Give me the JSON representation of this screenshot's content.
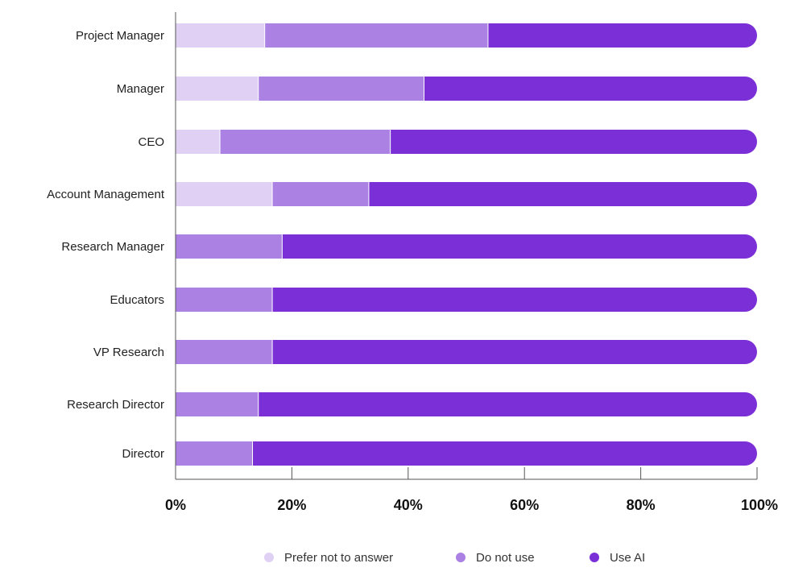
{
  "chart_data": {
    "type": "bar",
    "orientation": "horizontal",
    "stacked": true,
    "categories": [
      "Project Manager",
      "Manager",
      "CEO",
      "Account Management",
      "Research Manager",
      "Educators",
      "VP Research",
      "Research Director",
      "Director"
    ],
    "series": [
      {
        "name": "Prefer not to answer",
        "color": "#e0d1f4",
        "values": [
          15.4,
          14.3,
          7.7,
          16.7,
          0,
          0,
          0,
          0,
          0
        ]
      },
      {
        "name": "Do not use",
        "color": "#ab82e3",
        "values": [
          38.4,
          28.5,
          29.3,
          16.6,
          18.4,
          16.7,
          16.7,
          14.3,
          13.3
        ]
      },
      {
        "name": "Use AI",
        "color": "#7b2fd6",
        "values": [
          46.2,
          57.2,
          63.0,
          66.7,
          81.6,
          83.3,
          83.3,
          85.7,
          86.7
        ]
      }
    ],
    "xlim": [
      0,
      100
    ],
    "xticks": [
      "0%",
      "20%",
      "40%",
      "60%",
      "80%",
      "100%"
    ],
    "legend_position": "bottom",
    "grid": false
  }
}
